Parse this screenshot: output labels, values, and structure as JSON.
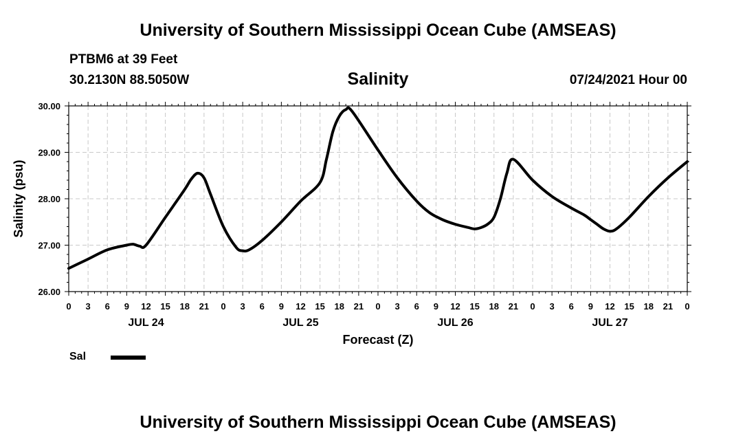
{
  "header": {
    "title": "University of Southern Mississippi Ocean Cube (AMSEAS)",
    "station": "PTBM6 at 39 Feet",
    "coords": "30.2130N  88.5050W",
    "subtitle": "Salinity",
    "datetime": "07/24/2021 Hour 00"
  },
  "footer": {
    "title": "University of Southern Mississippi Ocean Cube (AMSEAS)"
  },
  "legend": {
    "label": "Sal",
    "color": "#000000"
  },
  "chart_data": {
    "type": "line",
    "title": "Salinity",
    "xlabel": "Forecast (Z)",
    "ylabel": "Salinity (psu)",
    "ylim": [
      26.0,
      30.0
    ],
    "xlim": [
      0,
      96
    ],
    "y_ticks": [
      "26.00",
      "27.00",
      "28.00",
      "29.00",
      "30.00"
    ],
    "x_tick_labels": [
      "0",
      "3",
      "6",
      "9",
      "12",
      "15",
      "18",
      "21",
      "0",
      "3",
      "6",
      "9",
      "12",
      "15",
      "18",
      "21",
      "0",
      "3",
      "6",
      "9",
      "12",
      "15",
      "18",
      "21",
      "0",
      "3",
      "6",
      "9",
      "12",
      "15",
      "18",
      "21",
      "0"
    ],
    "day_labels": [
      {
        "hour": 12,
        "label": "JUL 24"
      },
      {
        "hour": 36,
        "label": "JUL 25"
      },
      {
        "hour": 60,
        "label": "JUL 26"
      },
      {
        "hour": 84,
        "label": "JUL 27"
      }
    ],
    "grid": true,
    "series": [
      {
        "name": "Sal",
        "x": [
          0,
          3,
          6,
          9,
          10,
          11,
          12,
          15,
          18,
          19,
          20,
          21,
          22,
          24,
          26,
          27,
          28,
          30,
          33,
          36,
          39,
          40,
          41,
          42,
          43,
          44,
          48,
          51,
          54,
          56,
          58,
          60,
          62,
          63,
          64,
          65,
          66,
          67,
          68,
          69,
          72,
          75,
          78,
          80,
          81,
          82,
          83,
          84,
          85,
          87,
          90,
          93,
          96
        ],
        "values": [
          26.5,
          26.7,
          26.9,
          27.0,
          27.02,
          26.98,
          27.0,
          27.6,
          28.2,
          28.42,
          28.55,
          28.45,
          28.1,
          27.4,
          26.95,
          26.88,
          26.9,
          27.1,
          27.5,
          27.95,
          28.35,
          28.85,
          29.45,
          29.78,
          29.92,
          29.88,
          29.05,
          28.45,
          27.95,
          27.7,
          27.55,
          27.45,
          27.38,
          27.35,
          27.38,
          27.45,
          27.6,
          28.0,
          28.55,
          28.85,
          28.4,
          28.05,
          27.8,
          27.65,
          27.55,
          27.45,
          27.35,
          27.3,
          27.35,
          27.6,
          28.05,
          28.45,
          28.8
        ]
      }
    ]
  }
}
